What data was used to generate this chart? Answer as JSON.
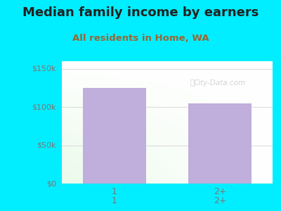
{
  "title": "Median family income by earners",
  "subtitle": "All residents in Home, WA",
  "categories": [
    "1",
    "2+"
  ],
  "values": [
    125000,
    105000
  ],
  "bar_color": "#c0aedd",
  "bar_width": 0.6,
  "ylim": [
    0,
    160000
  ],
  "yticks": [
    0,
    50000,
    100000,
    150000
  ],
  "ytick_labels": [
    "$0",
    "$50k",
    "$100k",
    "$150k"
  ],
  "title_fontsize": 13,
  "subtitle_fontsize": 9.5,
  "title_color": "#222222",
  "subtitle_color": "#996633",
  "tick_color": "#777777",
  "bg_outer": "#00eeff",
  "grid_color": "#dddddd",
  "watermark": "City-Data.com",
  "watermark_color": "#cccccc"
}
